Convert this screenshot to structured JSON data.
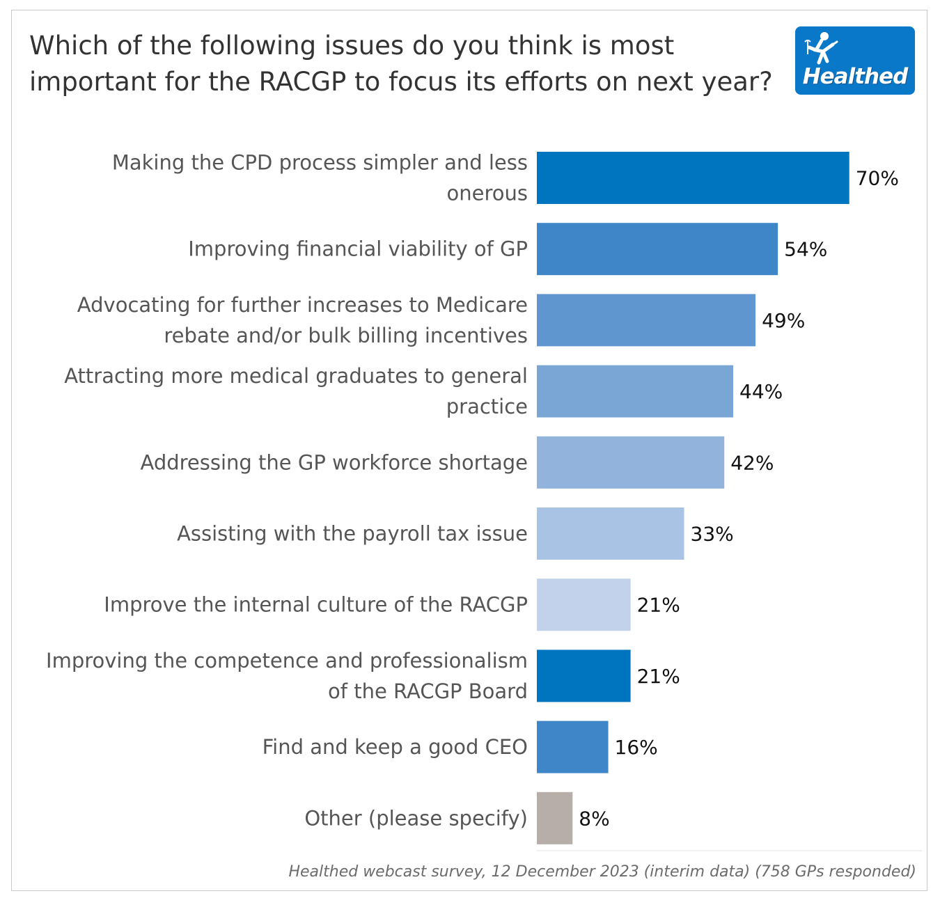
{
  "title_lines": [
    "Which of the following issues do you think is most",
    "important for the RACGP to focus its efforts on next year?"
  ],
  "logo": {
    "text": "Healthed",
    "color": "#0a78c8"
  },
  "footnote": "Healthed webcast survey, 12 December 2023 (interim data) (758 GPs responded)",
  "chart_data": {
    "type": "bar",
    "orientation": "horizontal",
    "title": "Which of the following issues do you think is most important for the RACGP to focus its efforts on next year?",
    "xlabel": "",
    "ylabel": "",
    "xlim": [
      0,
      100
    ],
    "grid": false,
    "categories": [
      [
        "Making the CPD process simpler and less",
        "onerous"
      ],
      [
        "Improving financial viability of GP"
      ],
      [
        "Advocating for further increases to Medicare",
        "rebate and/or bulk billing incentives"
      ],
      [
        "Attracting more medical graduates to general",
        "practice"
      ],
      [
        "Addressing the GP workforce shortage"
      ],
      [
        "Assisting with the payroll tax issue"
      ],
      [
        "Improve the internal culture of the RACGP"
      ],
      [
        "Improving the competence and professionalism",
        "of the RACGP Board"
      ],
      [
        "Find and keep a good CEO"
      ],
      [
        "Other (please specify)"
      ]
    ],
    "values": [
      70,
      54,
      49,
      44,
      42,
      33,
      21,
      21,
      16,
      8
    ],
    "value_labels": [
      "70%",
      "54%",
      "49%",
      "44%",
      "42%",
      "33%",
      "21%",
      "21%",
      "16%",
      "8%"
    ],
    "colors": [
      "#0075bf",
      "#3f86c8",
      "#5f96cf",
      "#7aa6d6",
      "#92b3dc",
      "#a9c3e4",
      "#c1d2ea",
      "#0075bf",
      "#3f86c8",
      "#b7aeaa"
    ]
  }
}
